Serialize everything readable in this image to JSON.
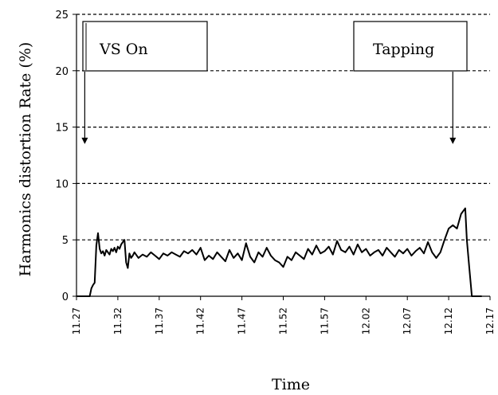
{
  "chart_data": {
    "type": "line",
    "title": "",
    "xlabel": "Time",
    "ylabel": "Harmonics distortion Rate (%)",
    "ylim": [
      0,
      25
    ],
    "yticks": [
      0,
      5,
      10,
      15,
      20,
      25
    ],
    "xlim": [
      0,
      50
    ],
    "xticks": [
      "11:27",
      "11:32",
      "11:37",
      "11:42",
      "11:47",
      "11:52",
      "11:57",
      "12:02",
      "12:07",
      "12:12",
      "12:17"
    ],
    "xticks_display": [
      "11.27",
      "11.32",
      "11.37",
      "11.42",
      "11.47",
      "11.52",
      "11.57",
      "12.02",
      "12.07",
      "12.12",
      "12.17"
    ],
    "grid": "horizontal-dashed",
    "legend": "none",
    "annotations": [
      {
        "text": "VS On",
        "arrow_x": 1.0,
        "arrow_y": 13.5
      },
      {
        "text": "Tapping",
        "arrow_x": 45.5,
        "arrow_y": 13.5
      }
    ],
    "series": [
      {
        "values_x": [
          0,
          1.6,
          1.8,
          2.0,
          2.2,
          2.4,
          2.6,
          2.8,
          3.0,
          3.2,
          3.4,
          3.6,
          3.8,
          4.0,
          4.2,
          4.4,
          4.6,
          4.8,
          5.0,
          5.2,
          5.4,
          5.6,
          5.8,
          6.0,
          6.2,
          6.4,
          6.6,
          6.8,
          7.0,
          7.5,
          8,
          8.5,
          9,
          9.5,
          10,
          10.5,
          11,
          11.5,
          12,
          12.5,
          13,
          13.5,
          14,
          14.5,
          15,
          15.5,
          16,
          16.5,
          17,
          17.5,
          18,
          18.5,
          19,
          19.5,
          20,
          20.5,
          21,
          21.5,
          22,
          22.5,
          23,
          23.5,
          24,
          24.5,
          25,
          25.5,
          26,
          26.5,
          27,
          27.5,
          28,
          28.5,
          29,
          29.5,
          30,
          30.5,
          31,
          31.5,
          32,
          32.5,
          33,
          33.5,
          34,
          34.5,
          35,
          35.5,
          36,
          36.5,
          37,
          37.5,
          38,
          38.5,
          39,
          39.5,
          40,
          40.5,
          41,
          41.5,
          42,
          42.5,
          43,
          43.5,
          44,
          44.5,
          45,
          45.5,
          46,
          46.5,
          47,
          47.2,
          47.5,
          47.8,
          48.0,
          48.2,
          48.4,
          48.6,
          48.8,
          49.0
        ],
        "values_y": [
          0,
          0,
          0.7,
          1.0,
          1.2,
          4.5,
          5.6,
          4.2,
          3.8,
          4.0,
          3.6,
          4.1,
          3.9,
          3.7,
          4.2,
          4.0,
          4.3,
          3.9,
          4.4,
          4.2,
          4.6,
          4.8,
          5.0,
          3.0,
          2.5,
          3.8,
          3.4,
          3.6,
          3.9,
          3.4,
          3.7,
          3.5,
          3.9,
          3.6,
          3.3,
          3.8,
          3.6,
          3.9,
          3.7,
          3.5,
          4.0,
          3.8,
          4.1,
          3.7,
          4.3,
          3.2,
          3.6,
          3.3,
          3.9,
          3.5,
          3.1,
          4.1,
          3.4,
          3.8,
          3.2,
          4.7,
          3.5,
          3.0,
          3.9,
          3.5,
          4.3,
          3.6,
          3.2,
          3.0,
          2.6,
          3.5,
          3.2,
          3.9,
          3.6,
          3.3,
          4.2,
          3.7,
          4.5,
          3.8,
          4.0,
          4.4,
          3.7,
          4.9,
          4.1,
          3.9,
          4.4,
          3.7,
          4.6,
          3.9,
          4.2,
          3.6,
          3.9,
          4.1,
          3.6,
          4.3,
          3.9,
          3.5,
          4.1,
          3.8,
          4.2,
          3.6,
          4.0,
          4.3,
          3.8,
          4.8,
          3.9,
          3.4,
          3.9,
          5.0,
          6.0,
          6.3,
          6.0,
          7.3,
          7.8,
          5.0,
          2.5,
          0,
          0,
          0,
          0,
          0,
          0,
          0
        ],
        "color": "#000000"
      }
    ]
  }
}
